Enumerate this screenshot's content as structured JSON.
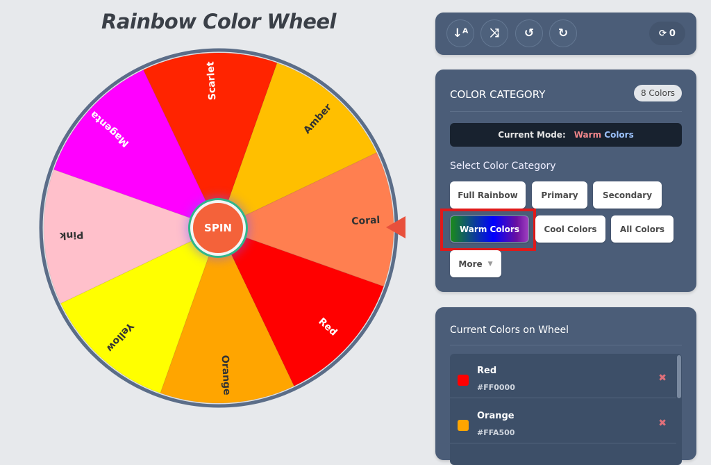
{
  "title": "Rainbow Color Wheel",
  "spin_label": "SPIN",
  "wheel": {
    "segments": [
      {
        "name": "Coral",
        "color": "#FF7F50",
        "text": "#333333"
      },
      {
        "name": "Red",
        "color": "#FF0000",
        "text": "#ffffff"
      },
      {
        "name": "Orange",
        "color": "#FFA500",
        "text": "#333333"
      },
      {
        "name": "Yellow",
        "color": "#FFFF00",
        "text": "#333333"
      },
      {
        "name": "Pink",
        "color": "#FFC0CB",
        "text": "#333333"
      },
      {
        "name": "Magenta",
        "color": "#FF00FF",
        "text": "#ffffff"
      },
      {
        "name": "Scarlet",
        "color": "#FF2400",
        "text": "#ffffff"
      },
      {
        "name": "Amber",
        "color": "#FFBF00",
        "text": "#333333"
      }
    ]
  },
  "toolbar": {
    "buttons": [
      {
        "icon": "sort-alpha-icon",
        "glyph": "↓ᴬ"
      },
      {
        "icon": "shuffle-icon",
        "glyph": "⤨"
      },
      {
        "icon": "history-icon",
        "glyph": "↺"
      },
      {
        "icon": "redo-icon",
        "glyph": "↻"
      }
    ],
    "spin_count_icon": "⟳",
    "spin_count": "0"
  },
  "category": {
    "heading": "COLOR CATEGORY",
    "badge": "8 Colors",
    "mode_label": "Current Mode:",
    "mode_warm": "Warm",
    "mode_colors": "Colors",
    "select_label": "Select Color Category",
    "buttons": [
      "Full Rainbow",
      "Primary",
      "Secondary",
      "Warm Colors",
      "Cool Colors",
      "All Colors",
      "More"
    ],
    "more_caret": "▼",
    "active": "Warm Colors"
  },
  "current": {
    "heading": "Current Colors on Wheel",
    "items": [
      {
        "name": "Red",
        "hex": "#FF0000"
      },
      {
        "name": "Orange",
        "hex": "#FFA500"
      }
    ],
    "remove_glyph": "✖"
  }
}
